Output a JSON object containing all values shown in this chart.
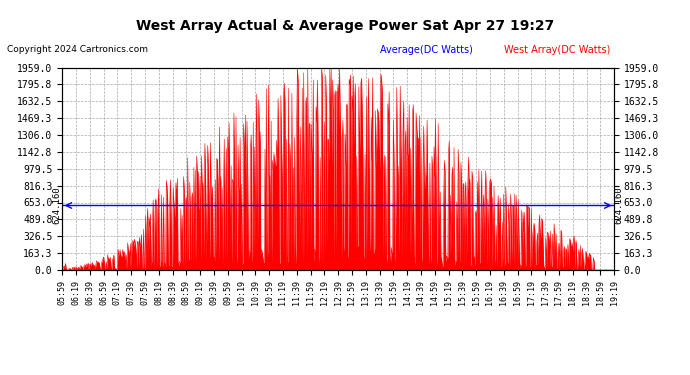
{
  "title": "West Array Actual & Average Power Sat Apr 27 19:27",
  "copyright": "Copyright 2024 Cartronics.com",
  "legend_avg": "Average(DC Watts)",
  "legend_west": "West Array(DC Watts)",
  "avg_value": 624.16,
  "avg_label": "624.160",
  "ymax": 1959.0,
  "ytick_vals": [
    0.0,
    163.3,
    326.5,
    489.8,
    653.0,
    816.3,
    979.5,
    1142.8,
    1306.0,
    1469.3,
    1632.5,
    1795.8,
    1959.0
  ],
  "ytick_labels": [
    "0.0",
    "163.3",
    "326.5",
    "489.8",
    "653.0",
    "816.3",
    "979.5",
    "1142.8",
    "1306.0",
    "1469.3",
    "1632.5",
    "1795.8",
    "1959.0"
  ],
  "bg_color": "#ffffff",
  "plot_bg": "#ffffff",
  "grid_color": "#aaaaaa",
  "bar_color": "#ff0000",
  "avg_line_color": "#0000ff",
  "xtick_labels": [
    "05:59",
    "06:19",
    "06:39",
    "06:59",
    "07:19",
    "07:39",
    "07:59",
    "08:19",
    "08:39",
    "08:59",
    "09:19",
    "09:39",
    "09:59",
    "10:19",
    "10:39",
    "10:59",
    "11:19",
    "11:39",
    "11:59",
    "12:19",
    "12:39",
    "12:59",
    "13:19",
    "13:39",
    "13:59",
    "14:19",
    "14:39",
    "14:59",
    "15:19",
    "15:39",
    "15:59",
    "16:19",
    "16:39",
    "16:59",
    "17:19",
    "17:39",
    "17:59",
    "18:19",
    "18:39",
    "18:59",
    "19:19"
  ]
}
